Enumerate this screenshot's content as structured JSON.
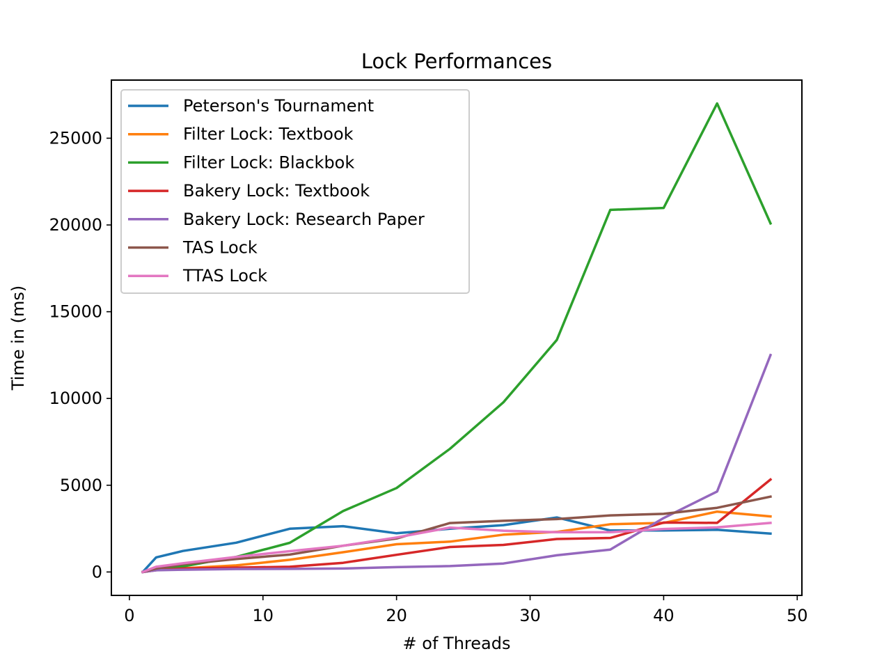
{
  "chart_data": {
    "type": "line",
    "title": "Lock Performances",
    "xlabel": "# of Threads",
    "ylabel": "Time in (ms)",
    "xlim": [
      -1.35,
      50.35
    ],
    "ylim": [
      -1350,
      28350
    ],
    "xticks": [
      0,
      10,
      20,
      30,
      40,
      50
    ],
    "yticks": [
      0,
      5000,
      10000,
      15000,
      20000,
      25000
    ],
    "grid": false,
    "legend_position": "top-left",
    "x": [
      1,
      2,
      4,
      8,
      12,
      16,
      20,
      24,
      28,
      32,
      36,
      40,
      44,
      48
    ],
    "series": [
      {
        "name": "Peterson's Tournament",
        "color": "#1f77b4",
        "values": [
          0,
          840,
          1210,
          1690,
          2490,
          2640,
          2230,
          2490,
          2700,
          3140,
          2390,
          2390,
          2430,
          2210
        ]
      },
      {
        "name": "Filter Lock: Textbook",
        "color": "#ff7f0e",
        "values": [
          0,
          120,
          210,
          380,
          700,
          1140,
          1600,
          1750,
          2150,
          2310,
          2750,
          2830,
          3480,
          3200
        ]
      },
      {
        "name": "Filter Lock: Blackbok",
        "color": "#2ca02c",
        "values": [
          0,
          130,
          320,
          870,
          1680,
          3510,
          4840,
          7100,
          9780,
          13370,
          20870,
          20980,
          27000,
          20090
        ]
      },
      {
        "name": "Bakery Lock: Textbook",
        "color": "#d62728",
        "values": [
          0,
          100,
          200,
          250,
          300,
          530,
          990,
          1440,
          1560,
          1900,
          1960,
          2850,
          2830,
          5330
        ]
      },
      {
        "name": "Bakery Lock: Research Paper",
        "color": "#9467bd",
        "values": [
          0,
          100,
          130,
          170,
          180,
          200,
          280,
          340,
          490,
          960,
          1290,
          3110,
          4640,
          12500
        ]
      },
      {
        "name": "TAS Lock",
        "color": "#8c564b",
        "values": [
          0,
          200,
          450,
          750,
          1000,
          1510,
          1930,
          2820,
          2950,
          3050,
          3260,
          3350,
          3700,
          4340
        ]
      },
      {
        "name": "TTAS Lock",
        "color": "#e377c2",
        "values": [
          0,
          300,
          500,
          870,
          1200,
          1510,
          1990,
          2560,
          2380,
          2290,
          2290,
          2480,
          2570,
          2830
        ]
      }
    ]
  }
}
